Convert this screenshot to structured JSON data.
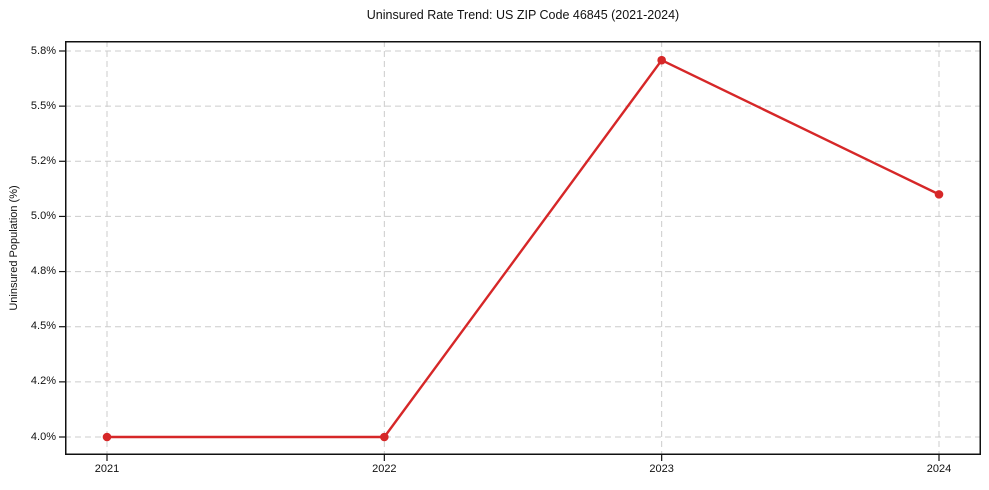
{
  "chart_data": {
    "type": "line",
    "title": "Uninsured Rate Trend: US ZIP Code 46845 (2021-2024)",
    "ylabel": "Uninsured Population (%)",
    "xlabel": "",
    "categories": [
      "2021",
      "2022",
      "2023",
      "2024"
    ],
    "series": [
      {
        "name": "Uninsured Population (%)",
        "values": [
          4.0,
          4.0,
          5.75,
          5.08
        ],
        "color": "#d62728",
        "marker": "circle",
        "line_width": 2.4
      }
    ],
    "y_tick_labels": [
      "5.8%",
      "5.5%",
      "5.2%",
      "5.0%",
      "4.8%",
      "4.5%",
      "4.2%",
      "4.0%"
    ],
    "y_tick_values": [
      5.8,
      5.5,
      5.2,
      5.0,
      4.8,
      4.5,
      4.2,
      4.0
    ],
    "y_tick_spacing": "uniform",
    "x_tick_labels": [
      "2021",
      "2022",
      "2023",
      "2024"
    ],
    "legend": "none",
    "grid": {
      "style": "dashed",
      "color": "#cccccc",
      "horizontal": true,
      "vertical": true
    },
    "axis_color": "#111111",
    "background": "#ffffff"
  }
}
